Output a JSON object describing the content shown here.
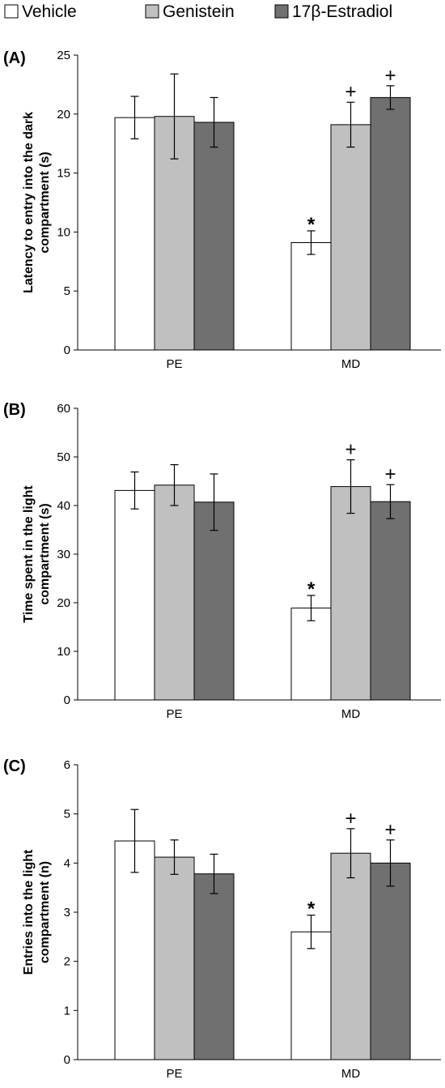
{
  "legend": [
    {
      "name": "Vehicle",
      "color": "#ffffff"
    },
    {
      "name": "Genistein",
      "color": "#c0c0c0"
    },
    {
      "name": "17β-Estradiol",
      "color": "#707070"
    }
  ],
  "chart_data": [
    {
      "type": "bar",
      "panel_label": "(A)",
      "ylabel_lines": [
        "Latency to entry into the dark",
        "compartment (s)"
      ],
      "categories": [
        "PE",
        "MD"
      ],
      "ylim": [
        0,
        25
      ],
      "yticks": [
        0,
        5,
        10,
        15,
        20,
        25
      ],
      "series": [
        {
          "name": "Vehicle",
          "values": [
            19.7,
            9.1
          ],
          "errors": [
            1.8,
            1.0
          ],
          "annotations": [
            "",
            "*"
          ]
        },
        {
          "name": "Genistein",
          "values": [
            19.8,
            19.1
          ],
          "errors": [
            3.6,
            1.9
          ],
          "annotations": [
            "",
            "+"
          ]
        },
        {
          "name": "17β-Estradiol",
          "values": [
            19.3,
            21.4
          ],
          "errors": [
            2.1,
            1.0
          ],
          "annotations": [
            "",
            "+"
          ]
        }
      ]
    },
    {
      "type": "bar",
      "panel_label": "(B)",
      "ylabel_lines": [
        "Time spent in the light",
        "compartment (s)"
      ],
      "categories": [
        "PE",
        "MD"
      ],
      "ylim": [
        0,
        60
      ],
      "yticks": [
        0,
        10,
        20,
        30,
        40,
        50,
        60
      ],
      "series": [
        {
          "name": "Vehicle",
          "values": [
            43.1,
            18.9
          ],
          "errors": [
            3.8,
            2.6
          ],
          "annotations": [
            "",
            "*"
          ]
        },
        {
          "name": "Genistein",
          "values": [
            44.2,
            43.9
          ],
          "errors": [
            4.2,
            5.5
          ],
          "annotations": [
            "",
            "+"
          ]
        },
        {
          "name": "17β-Estradiol",
          "values": [
            40.7,
            40.8
          ],
          "errors": [
            5.8,
            3.5
          ],
          "annotations": [
            "",
            "+"
          ]
        }
      ]
    },
    {
      "type": "bar",
      "panel_label": "(C)",
      "ylabel_lines": [
        "Entries into the light",
        "compartment (n)"
      ],
      "categories": [
        "PE",
        "MD"
      ],
      "ylim": [
        0,
        6
      ],
      "yticks": [
        0,
        1,
        2,
        3,
        4,
        5,
        6
      ],
      "series": [
        {
          "name": "Vehicle",
          "values": [
            4.45,
            2.6
          ],
          "errors": [
            0.64,
            0.34
          ],
          "annotations": [
            "",
            "*"
          ]
        },
        {
          "name": "Genistein",
          "values": [
            4.12,
            4.2
          ],
          "errors": [
            0.35,
            0.5
          ],
          "annotations": [
            "",
            "+"
          ]
        },
        {
          "name": "17β-Estradiol",
          "values": [
            3.78,
            4.0
          ],
          "errors": [
            0.4,
            0.47
          ],
          "annotations": [
            "",
            "+"
          ]
        }
      ]
    }
  ]
}
